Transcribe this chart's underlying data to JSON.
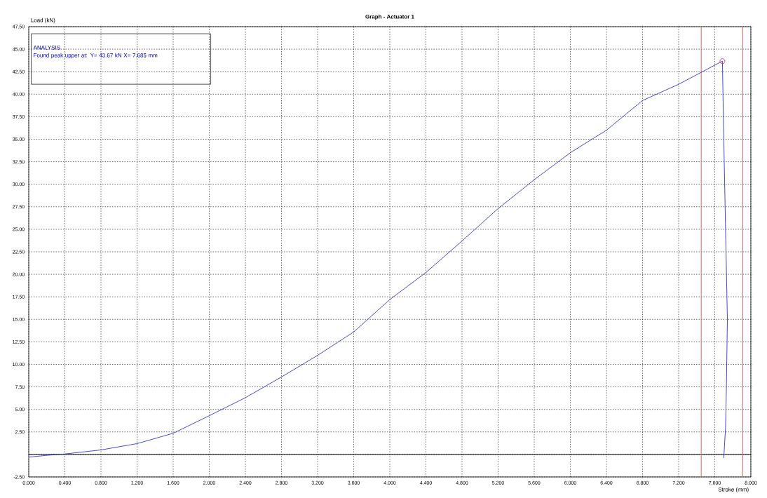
{
  "chart_data": {
    "type": "line",
    "title": "Graph - Actuator 1",
    "xlabel": "Stroke (mm)",
    "ylabel": "Load (kN)",
    "annotations": [
      "ANALYSIS",
      "Found peak upper at: Y= 43.67 kN X= 7.685 mm"
    ],
    "grid": true,
    "xlim": [
      0,
      8
    ],
    "ylim": [
      -2.5,
      47.5
    ],
    "xticks": [
      {
        "value": 0,
        "label": "0.000"
      },
      {
        "value": 0.4,
        "label": "0.400"
      },
      {
        "value": 0.8,
        "label": "0.800"
      },
      {
        "value": 1.2,
        "label": "1.200"
      },
      {
        "value": 1.6,
        "label": "1.600"
      },
      {
        "value": 2.0,
        "label": "2.000"
      },
      {
        "value": 2.4,
        "label": "2.400"
      },
      {
        "value": 2.8,
        "label": "2.800"
      },
      {
        "value": 3.2,
        "label": "3.200"
      },
      {
        "value": 3.6,
        "label": "3.600"
      },
      {
        "value": 4.0,
        "label": "4.000"
      },
      {
        "value": 4.4,
        "label": "4.400"
      },
      {
        "value": 4.8,
        "label": "4.800"
      },
      {
        "value": 5.2,
        "label": "5.200"
      },
      {
        "value": 5.6,
        "label": "5.600"
      },
      {
        "value": 6.0,
        "label": "6.000"
      },
      {
        "value": 6.4,
        "label": "6.400"
      },
      {
        "value": 6.8,
        "label": "6.800"
      },
      {
        "value": 7.2,
        "label": "7.200"
      },
      {
        "value": 7.6,
        "label": "7.600"
      },
      {
        "value": 8.0,
        "label": "8.000"
      }
    ],
    "yticks": [
      {
        "value": -2.5,
        "label": "-2.50"
      },
      {
        "value": 0,
        "label": null
      },
      {
        "value": 2.5,
        "label": "2.50"
      },
      {
        "value": 5,
        "label": "5.00"
      },
      {
        "value": 7.5,
        "label": "7.50"
      },
      {
        "value": 10,
        "label": "10.00"
      },
      {
        "value": 12.5,
        "label": "12.50"
      },
      {
        "value": 15,
        "label": "15.00"
      },
      {
        "value": 17.5,
        "label": "17.50"
      },
      {
        "value": 20,
        "label": "20.00"
      },
      {
        "value": 22.5,
        "label": "22.50"
      },
      {
        "value": 25,
        "label": "25.00"
      },
      {
        "value": 27.5,
        "label": "27.50"
      },
      {
        "value": 30,
        "label": "30.00"
      },
      {
        "value": 32.5,
        "label": "32.50"
      },
      {
        "value": 35,
        "label": "35.00"
      },
      {
        "value": 37.5,
        "label": "37.50"
      },
      {
        "value": 40,
        "label": "40.00"
      },
      {
        "value": 42.5,
        "label": "42.50"
      },
      {
        "value": 45,
        "label": "45.00"
      },
      {
        "value": 47.5,
        "label": "47.50"
      }
    ],
    "ref_lines": [
      {
        "axis": "y",
        "value": 0,
        "color": "#000000"
      },
      {
        "axis": "x",
        "value": 7.45,
        "color": "#e06060"
      },
      {
        "axis": "x",
        "value": 7.91,
        "color": "#e06060"
      }
    ],
    "series": [
      {
        "color": "#3333cc",
        "marker": "none",
        "x": [
          0,
          0.2,
          0.4,
          0.8,
          1.2,
          1.6,
          2.0,
          2.4,
          2.8,
          3.2,
          3.6,
          4.0,
          4.4,
          4.8,
          5.2,
          5.6,
          6.0,
          6.4,
          6.8,
          7.2,
          7.685,
          7.7,
          7.72,
          7.74,
          7.73,
          7.72,
          7.7
        ],
        "values": [
          -0.3,
          -0.1,
          0.05,
          0.5,
          1.2,
          2.35,
          4.3,
          6.3,
          8.6,
          11.0,
          13.6,
          17.2,
          20.2,
          23.7,
          27.3,
          30.5,
          33.5,
          36.0,
          39.3,
          41.1,
          43.67,
          35,
          25,
          15,
          8,
          3,
          -0.4
        ]
      },
      {
        "type": "scatter",
        "color": "#cc3366",
        "marker": "circle",
        "x": [
          7.685
        ],
        "values": [
          43.67
        ]
      }
    ]
  }
}
